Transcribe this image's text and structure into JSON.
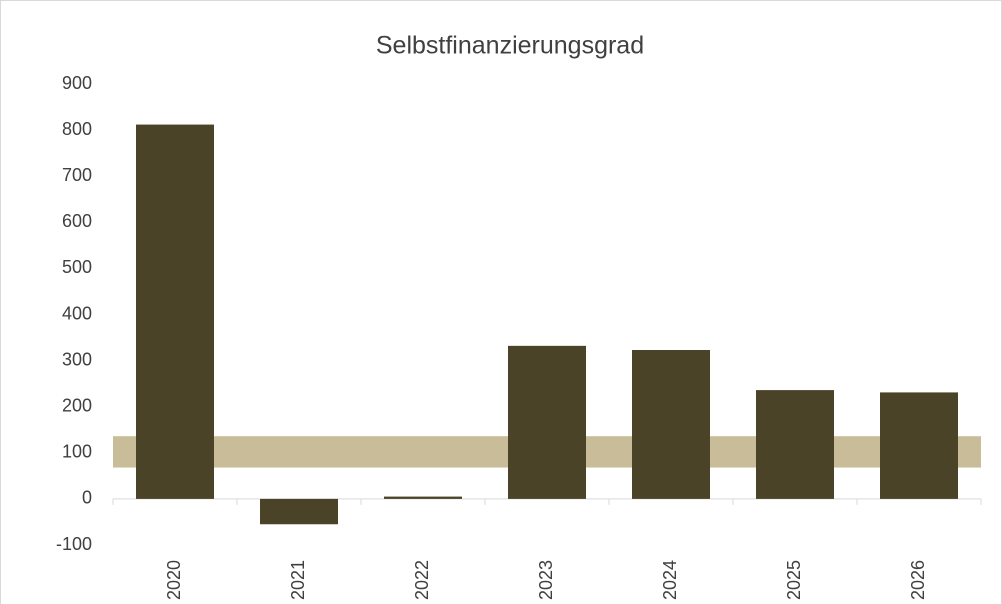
{
  "chart_data": {
    "type": "bar",
    "title": "Selbstfinanzierungsgrad",
    "categories": [
      "2020",
      "2021",
      "2022",
      "2023",
      "2024",
      "2025",
      "2026"
    ],
    "values": [
      812,
      -55,
      5,
      332,
      323,
      236,
      231
    ],
    "color": "#4a4328",
    "ylim": [
      -100,
      900
    ],
    "yticks": [
      -100,
      0,
      100,
      200,
      300,
      400,
      500,
      600,
      700,
      800,
      900
    ],
    "band": {
      "from": 68,
      "to": 136,
      "color": "#c8bd98"
    }
  }
}
